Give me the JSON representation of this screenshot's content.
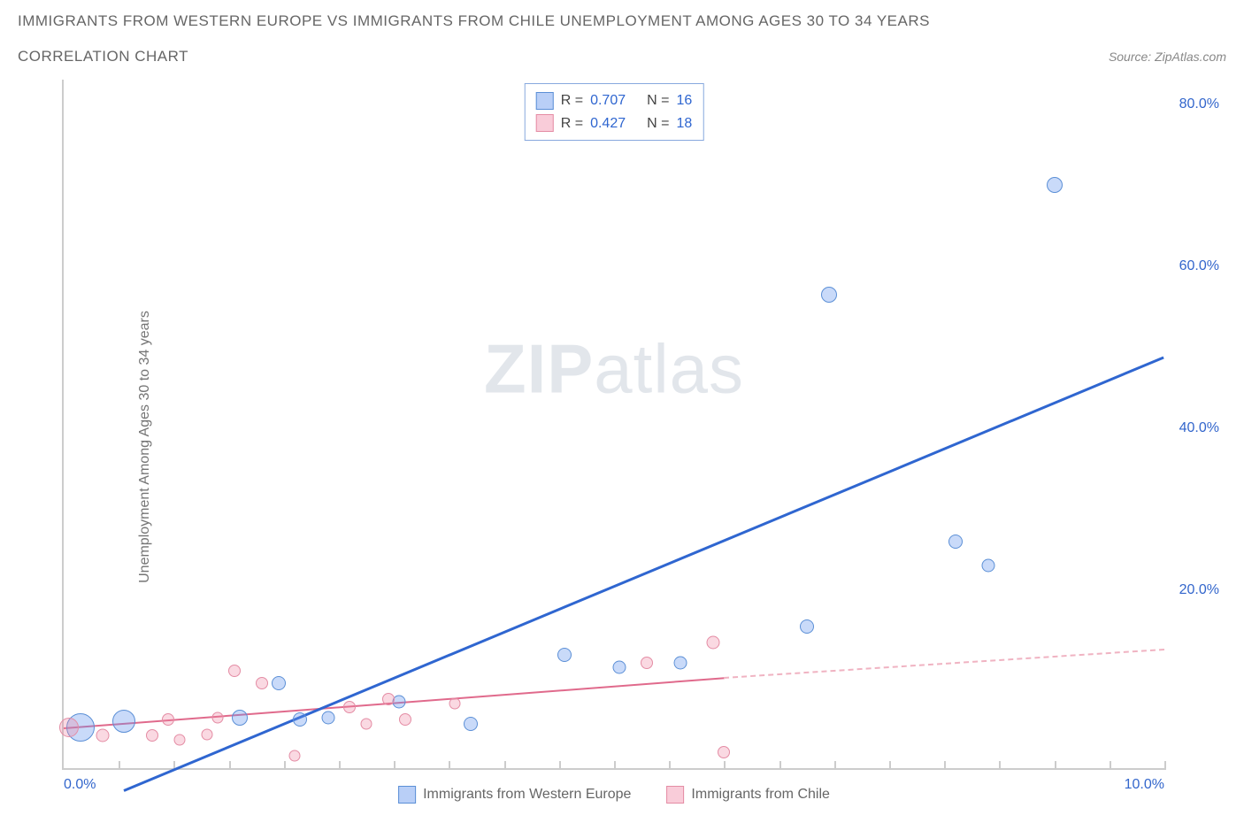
{
  "header": {
    "title": "IMMIGRANTS FROM WESTERN EUROPE VS IMMIGRANTS FROM CHILE UNEMPLOYMENT AMONG AGES 30 TO 34 YEARS",
    "subtitle": "CORRELATION CHART",
    "source": "Source: ZipAtlas.com"
  },
  "ylabel": "Unemployment Among Ages 30 to 34 years",
  "watermark": {
    "left": "ZIP",
    "right": "atlas"
  },
  "chart": {
    "type": "scatter",
    "xlim": [
      0,
      10
    ],
    "ylim": [
      0,
      85
    ],
    "x_min_label": "0.0%",
    "x_max_label": "10.0%",
    "x_tick_positions": [
      0.5,
      1.0,
      1.5,
      2.0,
      2.5,
      3.0,
      3.5,
      4.0,
      4.5,
      5.0,
      5.5,
      6.0,
      6.5,
      7.0,
      7.5,
      8.0,
      8.5,
      9.0,
      9.5,
      10.0
    ],
    "y_ticks": [
      {
        "value": 20,
        "label": "20.0%"
      },
      {
        "value": 40,
        "label": "40.0%"
      },
      {
        "value": 60,
        "label": "60.0%"
      },
      {
        "value": 80,
        "label": "80.0%"
      }
    ],
    "colors": {
      "blue_fill": "rgba(100,149,237,0.35)",
      "blue_stroke": "#5b8fd6",
      "blue_line": "#2f66d0",
      "pink_fill": "rgba(240,128,160,0.30)",
      "pink_stroke": "#e48ca4",
      "pink_line": "#e06a8c",
      "pink_dash": "#f0b3c2",
      "axis": "#cccccc",
      "text": "#666666",
      "value_text": "#2f66d0",
      "background": "#ffffff"
    },
    "series": [
      {
        "name": "Immigrants from Western Europe",
        "color_key": "blue",
        "stats": {
          "R": "0.707",
          "N": "16"
        },
        "trend": {
          "x1": 0.55,
          "y1": -3,
          "x2": 10.0,
          "y2": 50.5
        },
        "points": [
          {
            "x": 0.15,
            "y": 5.0,
            "size": 32
          },
          {
            "x": 0.55,
            "y": 5.8,
            "size": 26
          },
          {
            "x": 1.6,
            "y": 6.2,
            "size": 18
          },
          {
            "x": 1.95,
            "y": 10.5,
            "size": 16
          },
          {
            "x": 2.15,
            "y": 6.0,
            "size": 16
          },
          {
            "x": 2.4,
            "y": 6.2,
            "size": 15
          },
          {
            "x": 3.05,
            "y": 8.2,
            "size": 15
          },
          {
            "x": 3.7,
            "y": 5.5,
            "size": 16
          },
          {
            "x": 4.55,
            "y": 14.0,
            "size": 16
          },
          {
            "x": 5.05,
            "y": 12.5,
            "size": 15
          },
          {
            "x": 5.6,
            "y": 13.0,
            "size": 15
          },
          {
            "x": 6.75,
            "y": 17.5,
            "size": 16
          },
          {
            "x": 6.95,
            "y": 58.5,
            "size": 18
          },
          {
            "x": 8.1,
            "y": 28.0,
            "size": 16
          },
          {
            "x": 8.4,
            "y": 25.0,
            "size": 15
          },
          {
            "x": 9.0,
            "y": 72.0,
            "size": 18
          }
        ]
      },
      {
        "name": "Immigrants from Chile",
        "color_key": "pink",
        "stats": {
          "R": "0.427",
          "N": "18"
        },
        "trend_solid": {
          "x1": 0.0,
          "y1": 4.8,
          "x2": 6.0,
          "y2": 11.0
        },
        "trend_dash": {
          "x1": 6.0,
          "y1": 11.0,
          "x2": 10.0,
          "y2": 14.5
        },
        "points": [
          {
            "x": 0.05,
            "y": 5.0,
            "size": 22
          },
          {
            "x": 0.35,
            "y": 4.0,
            "size": 15
          },
          {
            "x": 0.8,
            "y": 4.0,
            "size": 14
          },
          {
            "x": 0.95,
            "y": 6.0,
            "size": 14
          },
          {
            "x": 1.05,
            "y": 3.5,
            "size": 13
          },
          {
            "x": 1.3,
            "y": 4.2,
            "size": 13
          },
          {
            "x": 1.4,
            "y": 6.2,
            "size": 13
          },
          {
            "x": 1.55,
            "y": 12.0,
            "size": 14
          },
          {
            "x": 1.8,
            "y": 10.5,
            "size": 14
          },
          {
            "x": 2.1,
            "y": 1.5,
            "size": 13
          },
          {
            "x": 2.6,
            "y": 7.5,
            "size": 14
          },
          {
            "x": 2.75,
            "y": 5.5,
            "size": 13
          },
          {
            "x": 2.95,
            "y": 8.5,
            "size": 14
          },
          {
            "x": 3.1,
            "y": 6.0,
            "size": 14
          },
          {
            "x": 3.55,
            "y": 8.0,
            "size": 13
          },
          {
            "x": 5.3,
            "y": 13.0,
            "size": 14
          },
          {
            "x": 5.9,
            "y": 15.5,
            "size": 15
          },
          {
            "x": 6.0,
            "y": 2.0,
            "size": 14
          }
        ]
      }
    ],
    "legend_top_labels": {
      "R": "R =",
      "N": "N ="
    },
    "legend_bottom": [
      {
        "label": "Immigrants from Western Europe",
        "color_key": "blue"
      },
      {
        "label": "Immigrants from Chile",
        "color_key": "pink"
      }
    ]
  }
}
